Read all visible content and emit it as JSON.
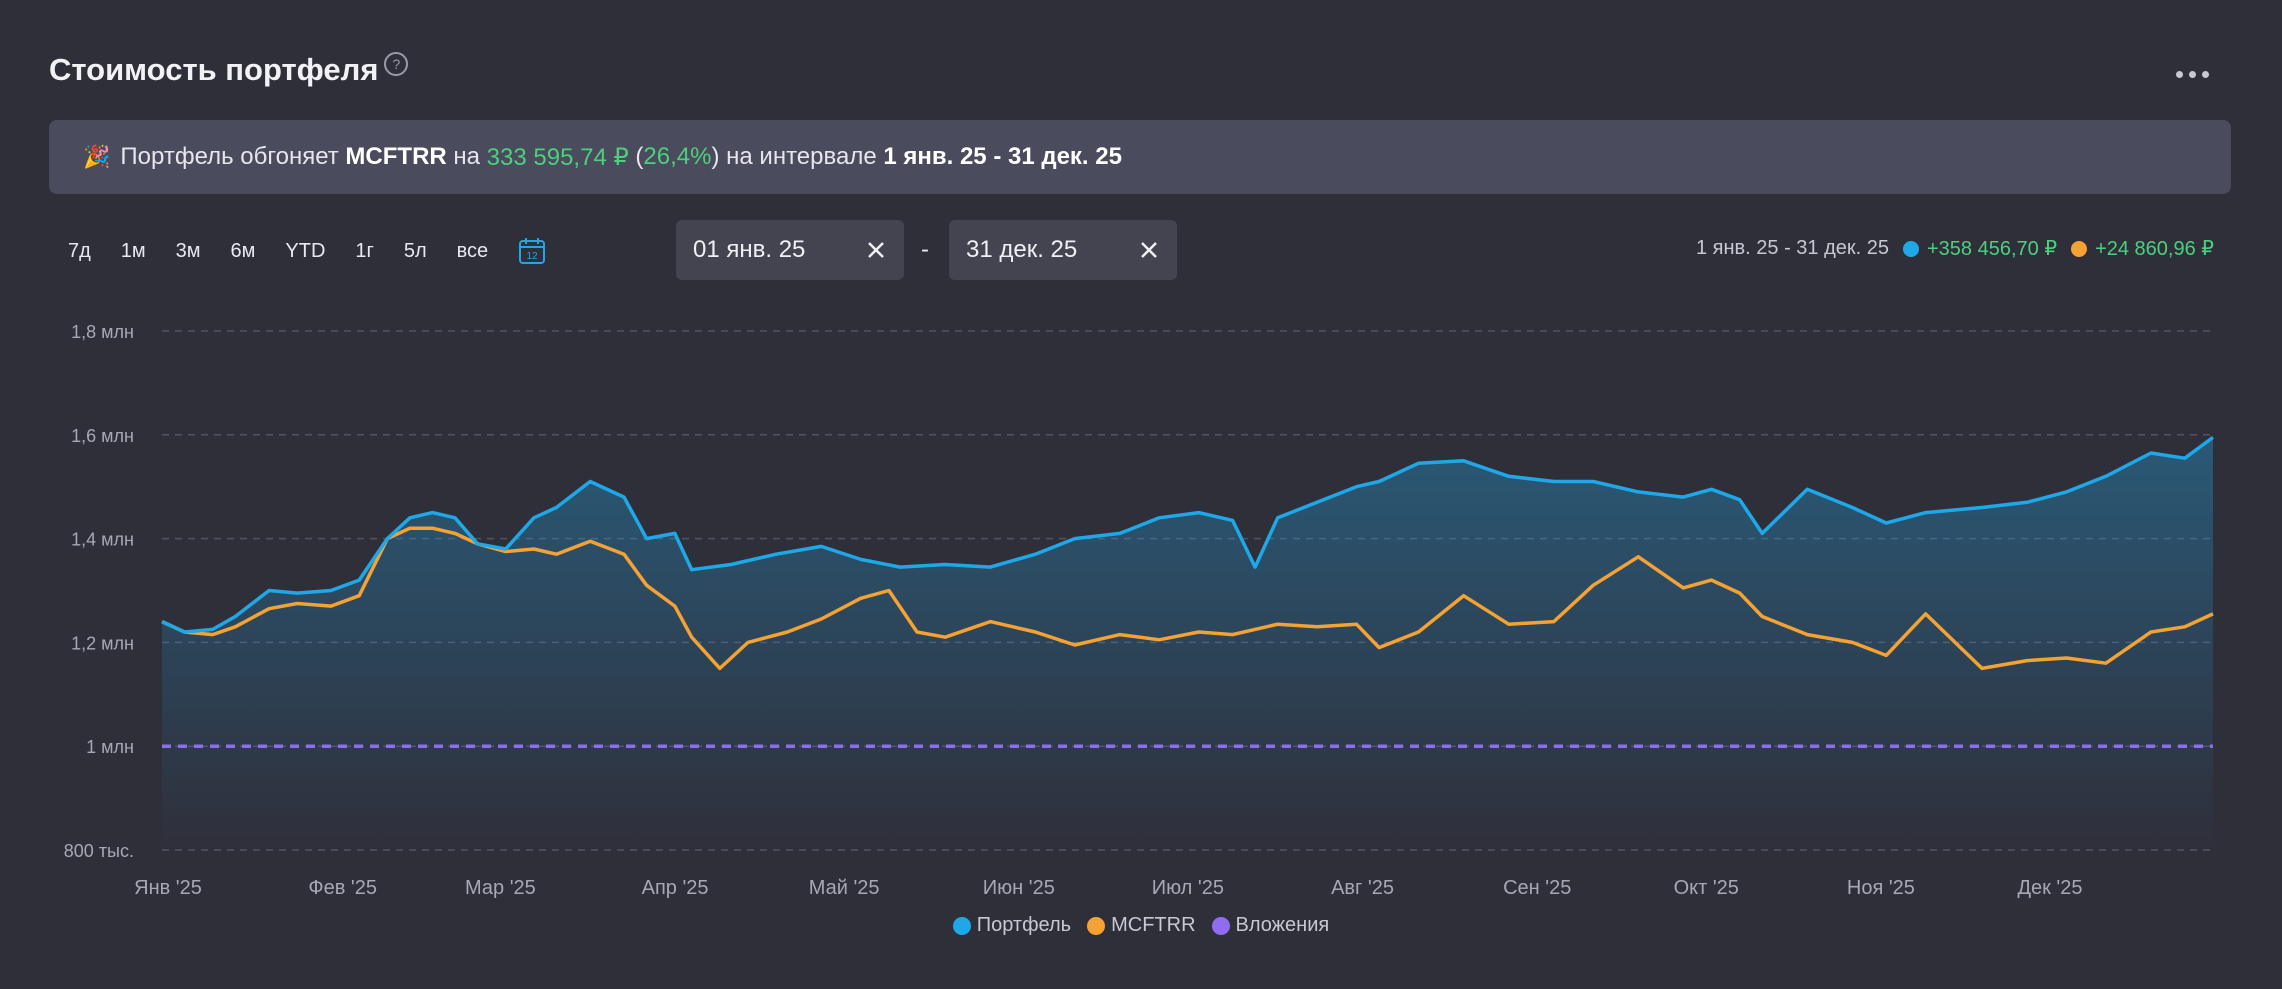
{
  "header": {
    "title": "Стоимость портфеля",
    "help_icon": "?"
  },
  "banner": {
    "emoji": "🎉",
    "text1": "Портфель обгоняет ",
    "benchmark": "MCFTRR",
    "text2": " на ",
    "amount": "333 595,74 ₽",
    "paren_open": " (",
    "percent": "26,4%",
    "paren_close": ")",
    "text3": " на интервале ",
    "interval": "1 янв. 25 - 31 дек. 25"
  },
  "periods": [
    "7д",
    "1м",
    "3м",
    "6м",
    "YTD",
    "1г",
    "5л",
    "все"
  ],
  "date_range": {
    "from": "01 янв. 25",
    "separator": "-",
    "to": "31 дек. 25"
  },
  "summary": {
    "interval": "1 янв. 25 - 31 дек. 25",
    "portfolio_change": "+358 456,70 ₽",
    "benchmark_change": "+24 860,96 ₽"
  },
  "colors": {
    "portfolio": "#1fa8e8",
    "benchmark": "#f5a235",
    "investments": "#8f6cf0",
    "positive": "#4cd07d"
  },
  "chart_data": {
    "type": "line",
    "x_range": [
      "2025-01-01",
      "2025-12-31"
    ],
    "ylim": [
      800000,
      1800000
    ],
    "y_ticks": [
      {
        "value": 1800000,
        "label": "1,8 млн"
      },
      {
        "value": 1600000,
        "label": "1,6 млн"
      },
      {
        "value": 1400000,
        "label": "1,4 млн"
      },
      {
        "value": 1200000,
        "label": "1,2 млн"
      },
      {
        "value": 1000000,
        "label": "1 млн"
      },
      {
        "value": 800000,
        "label": "800 тыс."
      }
    ],
    "x_ticks": [
      {
        "date": "2025-01-01",
        "label": "Янв '25"
      },
      {
        "date": "2025-02-01",
        "label": "Фев '25"
      },
      {
        "date": "2025-03-01",
        "label": "Мар '25"
      },
      {
        "date": "2025-04-01",
        "label": "Апр '25"
      },
      {
        "date": "2025-05-01",
        "label": "Май '25"
      },
      {
        "date": "2025-06-01",
        "label": "Июн '25"
      },
      {
        "date": "2025-07-01",
        "label": "Июл '25"
      },
      {
        "date": "2025-08-01",
        "label": "Авг '25"
      },
      {
        "date": "2025-09-01",
        "label": "Сен '25"
      },
      {
        "date": "2025-10-01",
        "label": "Окт '25"
      },
      {
        "date": "2025-11-01",
        "label": "Ноя '25"
      },
      {
        "date": "2025-12-01",
        "label": "Дек '25"
      }
    ],
    "grid": true,
    "legend_position": "bottom",
    "series": [
      {
        "name": "Портфель",
        "color": "#1fa8e8",
        "fill": true,
        "x": [
          "2025-01-01",
          "2025-01-05",
          "2025-01-10",
          "2025-01-14",
          "2025-01-20",
          "2025-01-25",
          "2025-01-31",
          "2025-02-05",
          "2025-02-10",
          "2025-02-14",
          "2025-02-18",
          "2025-02-22",
          "2025-02-26",
          "2025-03-03",
          "2025-03-08",
          "2025-03-12",
          "2025-03-18",
          "2025-03-24",
          "2025-03-28",
          "2025-04-02",
          "2025-04-05",
          "2025-04-12",
          "2025-04-20",
          "2025-04-28",
          "2025-05-05",
          "2025-05-12",
          "2025-05-20",
          "2025-05-28",
          "2025-06-05",
          "2025-06-12",
          "2025-06-20",
          "2025-06-27",
          "2025-07-04",
          "2025-07-10",
          "2025-07-14",
          "2025-07-18",
          "2025-07-25",
          "2025-08-01",
          "2025-08-05",
          "2025-08-12",
          "2025-08-20",
          "2025-08-28",
          "2025-09-05",
          "2025-09-12",
          "2025-09-20",
          "2025-09-28",
          "2025-10-03",
          "2025-10-08",
          "2025-10-12",
          "2025-10-20",
          "2025-10-28",
          "2025-11-03",
          "2025-11-10",
          "2025-11-20",
          "2025-11-28",
          "2025-12-05",
          "2025-12-12",
          "2025-12-20",
          "2025-12-26",
          "2025-12-31"
        ],
        "values": [
          1240000,
          1220000,
          1225000,
          1250000,
          1300000,
          1295000,
          1300000,
          1320000,
          1400000,
          1440000,
          1450000,
          1440000,
          1390000,
          1380000,
          1440000,
          1460000,
          1510000,
          1480000,
          1400000,
          1410000,
          1340000,
          1350000,
          1370000,
          1385000,
          1360000,
          1345000,
          1350000,
          1345000,
          1370000,
          1400000,
          1410000,
          1440000,
          1450000,
          1435000,
          1345000,
          1440000,
          1470000,
          1500000,
          1510000,
          1545000,
          1550000,
          1520000,
          1510000,
          1510000,
          1490000,
          1480000,
          1495000,
          1475000,
          1410000,
          1495000,
          1460000,
          1430000,
          1450000,
          1460000,
          1470000,
          1490000,
          1520000,
          1565000,
          1555000,
          1595000
        ]
      },
      {
        "name": "MCFTRR",
        "color": "#f5a235",
        "fill": false,
        "x": [
          "2025-01-01",
          "2025-01-05",
          "2025-01-10",
          "2025-01-14",
          "2025-01-20",
          "2025-01-25",
          "2025-01-31",
          "2025-02-05",
          "2025-02-10",
          "2025-02-14",
          "2025-02-18",
          "2025-02-22",
          "2025-02-26",
          "2025-03-03",
          "2025-03-08",
          "2025-03-12",
          "2025-03-18",
          "2025-03-24",
          "2025-03-28",
          "2025-04-02",
          "2025-04-05",
          "2025-04-10",
          "2025-04-15",
          "2025-04-22",
          "2025-04-28",
          "2025-05-05",
          "2025-05-10",
          "2025-05-15",
          "2025-05-20",
          "2025-05-28",
          "2025-06-05",
          "2025-06-12",
          "2025-06-20",
          "2025-06-27",
          "2025-07-04",
          "2025-07-10",
          "2025-07-18",
          "2025-07-25",
          "2025-08-01",
          "2025-08-05",
          "2025-08-12",
          "2025-08-20",
          "2025-08-28",
          "2025-09-05",
          "2025-09-12",
          "2025-09-20",
          "2025-09-28",
          "2025-10-03",
          "2025-10-08",
          "2025-10-12",
          "2025-10-20",
          "2025-10-28",
          "2025-11-03",
          "2025-11-10",
          "2025-11-20",
          "2025-11-28",
          "2025-12-05",
          "2025-12-12",
          "2025-12-20",
          "2025-12-26",
          "2025-12-31"
        ],
        "values": [
          1240000,
          1220000,
          1215000,
          1230000,
          1265000,
          1275000,
          1270000,
          1290000,
          1400000,
          1420000,
          1420000,
          1410000,
          1390000,
          1375000,
          1380000,
          1370000,
          1395000,
          1370000,
          1310000,
          1270000,
          1210000,
          1150000,
          1200000,
          1220000,
          1245000,
          1285000,
          1300000,
          1220000,
          1210000,
          1240000,
          1220000,
          1195000,
          1215000,
          1205000,
          1220000,
          1215000,
          1235000,
          1230000,
          1235000,
          1190000,
          1220000,
          1290000,
          1235000,
          1240000,
          1310000,
          1365000,
          1305000,
          1320000,
          1295000,
          1250000,
          1215000,
          1200000,
          1175000,
          1255000,
          1150000,
          1165000,
          1170000,
          1160000,
          1220000,
          1230000,
          1255000
        ]
      },
      {
        "name": "Вложения",
        "color": "#8f6cf0",
        "fill": false,
        "dashed": true,
        "x": [
          "2025-01-01",
          "2025-12-31"
        ],
        "values": [
          1000000,
          1000000
        ]
      }
    ]
  }
}
